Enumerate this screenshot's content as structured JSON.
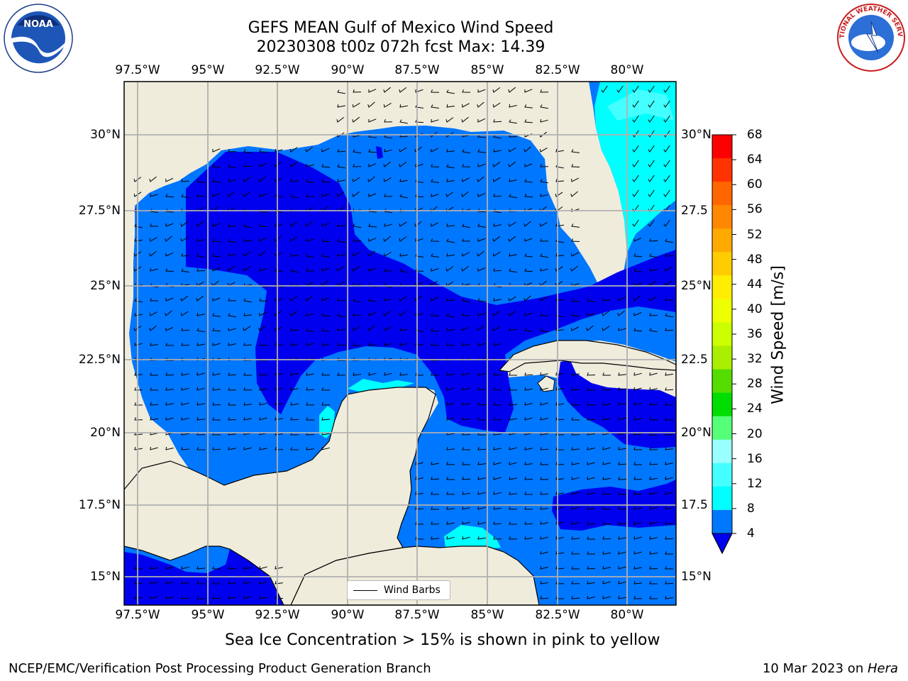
{
  "header": {
    "title_line1": "GEFS MEAN Gulf of Mexico Wind Speed",
    "title_line2": "20230308 t00z 072h fcst   Max: 14.39"
  },
  "map": {
    "lon_labels": [
      "97.5°W",
      "95°W",
      "92.5°W",
      "90°W",
      "87.5°W",
      "85°W",
      "82.5°W",
      "80°W"
    ],
    "lat_labels_left": [
      "30°N",
      "27.5°N",
      "25°N",
      "22.5°N",
      "20°N",
      "17.5°N",
      "15°N"
    ],
    "lat_labels_right": [
      "30°N",
      "27.5",
      "25°N",
      "22.5",
      "20°N",
      "17.5",
      "15°N"
    ],
    "legend_label": "Wind Barbs",
    "colors": {
      "land": "#efecdc",
      "grid": "#b0b0b0",
      "coast": "#000000"
    }
  },
  "colorbar": {
    "label": "Wind Speed [m/s]",
    "ticks": [
      "68",
      "64",
      "60",
      "56",
      "52",
      "48",
      "44",
      "40",
      "36",
      "32",
      "28",
      "24",
      "20",
      "16",
      "12",
      "8",
      "4"
    ],
    "colors": [
      "#ff0000",
      "#ff3300",
      "#ff6600",
      "#ff8800",
      "#ffaa00",
      "#ffcc00",
      "#ffee00",
      "#eeff00",
      "#ccff00",
      "#aaee00",
      "#55dd00",
      "#00dd00",
      "#55ff77",
      "#99ffff",
      "#44ffff",
      "#00ffff",
      "#0077ff"
    ],
    "under_color": "#0000ee"
  },
  "footer": {
    "note": "Sea Ice Concentration > 15% is shown in pink to yellow",
    "credit": "NCEP/EMC/Verification Post Processing Product Generation Branch",
    "date": "10 Mar 2023 on ",
    "machine": "Hera"
  },
  "logos": {
    "left": {
      "icon": "noaa-logo",
      "text": "NOAA"
    },
    "right": {
      "icon": "nws-logo",
      "text": "NATIONAL WEATHER SERVICE"
    }
  }
}
